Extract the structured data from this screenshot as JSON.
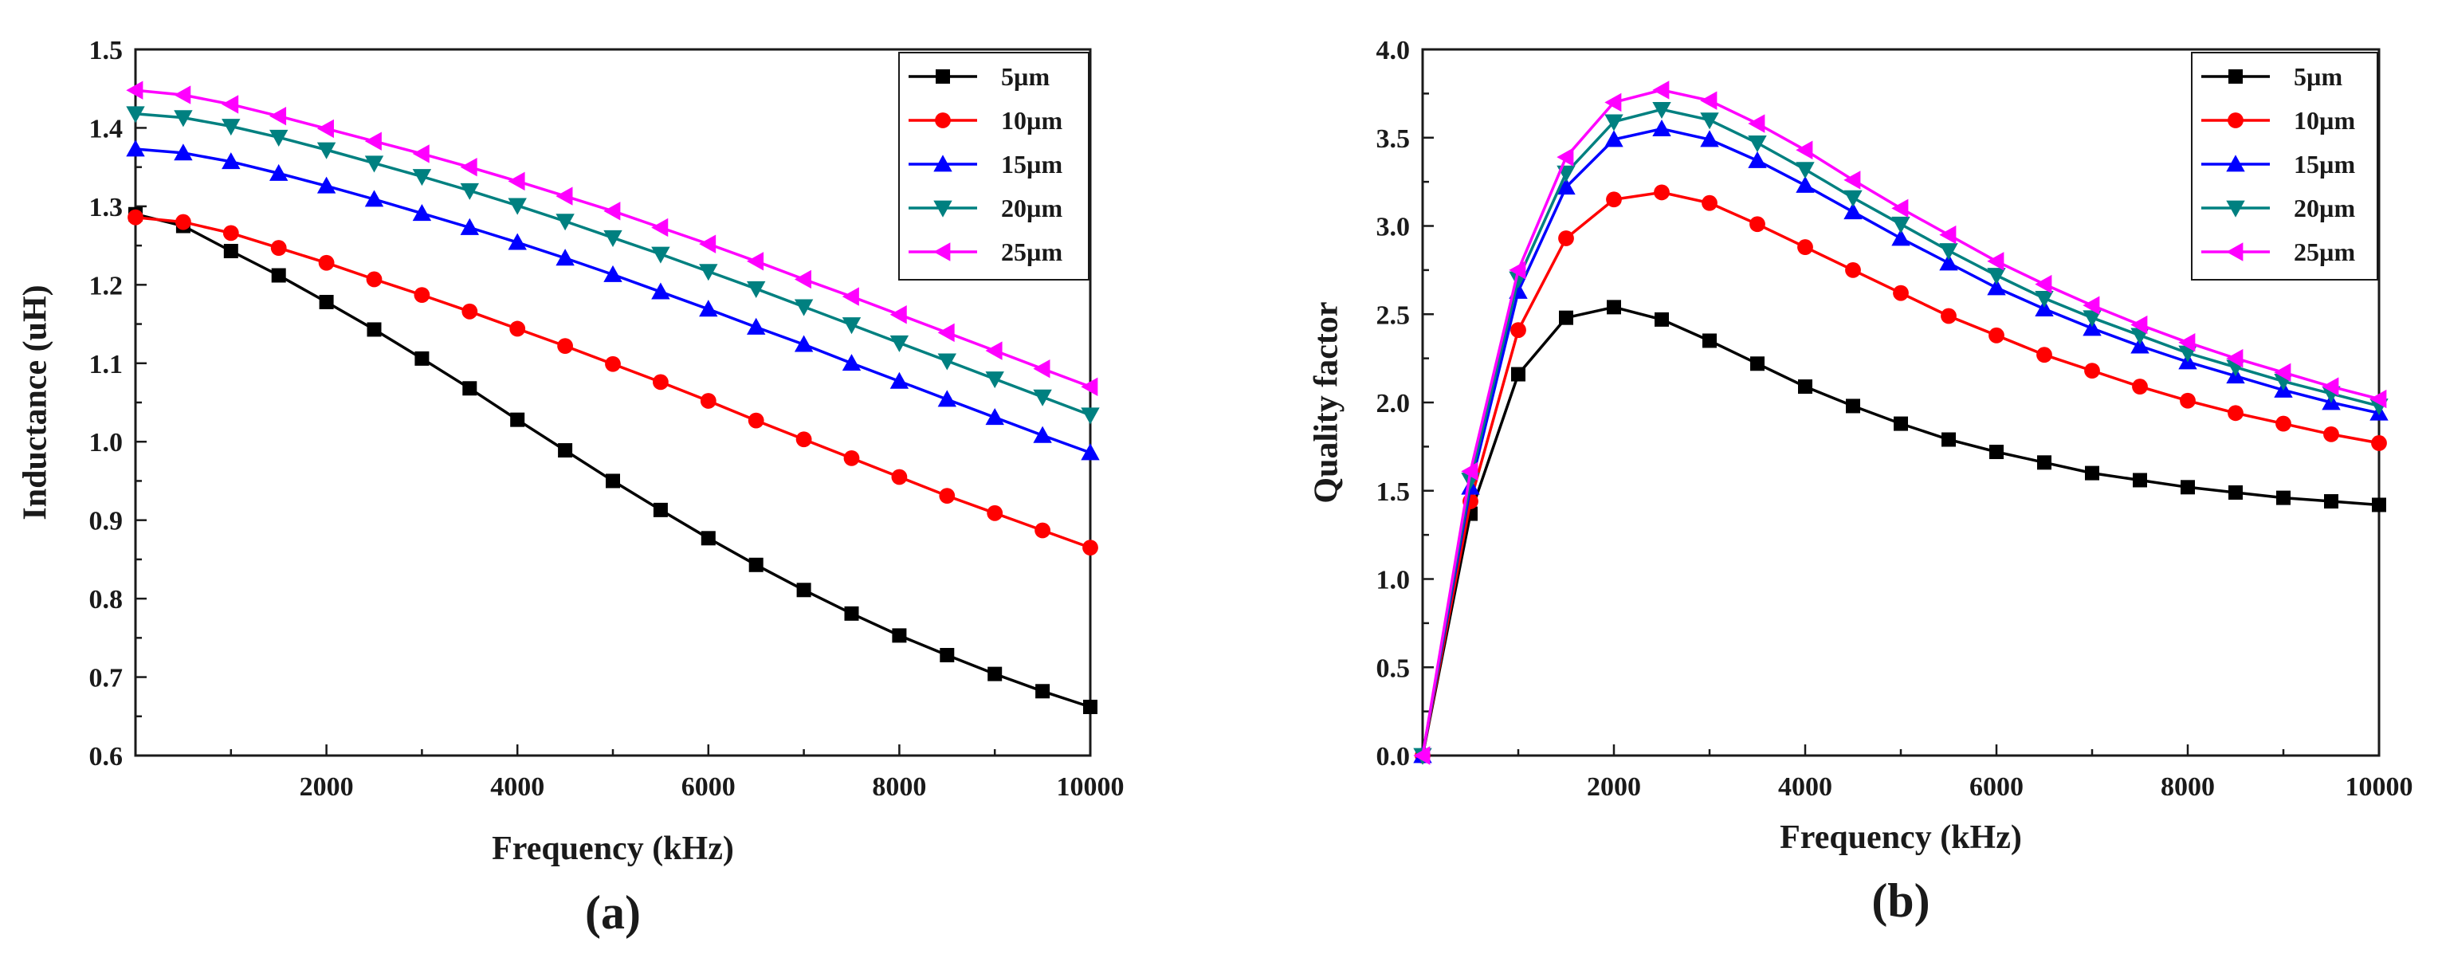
{
  "colors": {
    "5µm": "#000000",
    "10µm": "#ff0000",
    "15µm": "#0000ff",
    "20µm": "#008080",
    "25µm": "#ff00ff"
  },
  "chart_data": [
    {
      "type": "line",
      "panel_label": "(a)",
      "xlabel": "Frequency (kHz)",
      "ylabel": "Inductance (uH)",
      "xlim": [
        0,
        10000
      ],
      "ylim": [
        0.6,
        1.5
      ],
      "xticks": [
        2000,
        4000,
        6000,
        8000,
        10000
      ],
      "xtick_labels": [
        "2000",
        "4000",
        "6000",
        "8000",
        "10000"
      ],
      "yticks": [
        0.6,
        0.7,
        0.8,
        0.9,
        1.0,
        1.1,
        1.2,
        1.3,
        1.4,
        1.5
      ],
      "ytick_labels": [
        "0.6",
        "0.7",
        "0.8",
        "0.9",
        "1.0",
        "1.1",
        "1.2",
        "1.3",
        "1.4",
        "1.5"
      ],
      "legend_position": "top-right",
      "x": [
        0,
        500,
        1000,
        1500,
        2000,
        2500,
        3000,
        3500,
        4000,
        4500,
        5000,
        5500,
        6000,
        6500,
        7000,
        7500,
        8000,
        8500,
        9000,
        9500,
        10000
      ],
      "series": [
        {
          "name": "5µm",
          "marker": "square",
          "values": [
            1.29,
            1.275,
            1.243,
            1.212,
            1.178,
            1.143,
            1.106,
            1.068,
            1.028,
            0.989,
            0.95,
            0.913,
            0.877,
            0.843,
            0.811,
            0.781,
            0.753,
            0.728,
            0.704,
            0.682,
            0.662
          ]
        },
        {
          "name": "10µm",
          "marker": "circle",
          "values": [
            1.286,
            1.28,
            1.266,
            1.247,
            1.228,
            1.207,
            1.187,
            1.166,
            1.144,
            1.122,
            1.099,
            1.076,
            1.052,
            1.027,
            1.003,
            0.979,
            0.955,
            0.931,
            0.909,
            0.887,
            0.865
          ]
        },
        {
          "name": "15µm",
          "marker": "triangle-up",
          "values": [
            1.373,
            1.368,
            1.357,
            1.342,
            1.326,
            1.309,
            1.291,
            1.273,
            1.254,
            1.234,
            1.213,
            1.191,
            1.169,
            1.146,
            1.124,
            1.1,
            1.077,
            1.054,
            1.031,
            1.008,
            0.986
          ]
        },
        {
          "name": "20µm",
          "marker": "triangle-down",
          "values": [
            1.418,
            1.413,
            1.402,
            1.388,
            1.372,
            1.355,
            1.338,
            1.32,
            1.301,
            1.281,
            1.26,
            1.239,
            1.217,
            1.195,
            1.172,
            1.149,
            1.126,
            1.103,
            1.08,
            1.057,
            1.034
          ]
        },
        {
          "name": "25µm",
          "marker": "triangle-left",
          "values": [
            1.448,
            1.442,
            1.43,
            1.415,
            1.399,
            1.383,
            1.367,
            1.35,
            1.332,
            1.313,
            1.294,
            1.273,
            1.252,
            1.23,
            1.207,
            1.185,
            1.162,
            1.139,
            1.116,
            1.093,
            1.07
          ]
        }
      ]
    },
    {
      "type": "line",
      "panel_label": "(b)",
      "xlabel": "Frequency (kHz)",
      "ylabel": "Quality factor",
      "xlim": [
        0,
        10000
      ],
      "ylim": [
        0.0,
        4.0
      ],
      "xticks": [
        2000,
        4000,
        6000,
        8000,
        10000
      ],
      "xtick_labels": [
        "2000",
        "4000",
        "6000",
        "8000",
        "10000"
      ],
      "yticks": [
        0.0,
        0.5,
        1.0,
        1.5,
        2.0,
        2.5,
        3.0,
        3.5,
        4.0
      ],
      "ytick_labels": [
        "0.0",
        "0.5",
        "1.0",
        "1.5",
        "2.0",
        "2.5",
        "3.0",
        "3.5",
        "4.0"
      ],
      "legend_position": "top-right",
      "x": [
        0,
        500,
        1000,
        1500,
        2000,
        2500,
        3000,
        3500,
        4000,
        4500,
        5000,
        5500,
        6000,
        6500,
        7000,
        7500,
        8000,
        8500,
        9000,
        9500,
        10000
      ],
      "series": [
        {
          "name": "5µm",
          "marker": "square",
          "values": [
            0.0,
            1.37,
            2.16,
            2.48,
            2.54,
            2.47,
            2.35,
            2.22,
            2.09,
            1.98,
            1.88,
            1.79,
            1.72,
            1.66,
            1.6,
            1.56,
            1.52,
            1.49,
            1.46,
            1.44,
            1.42
          ]
        },
        {
          "name": "10µm",
          "marker": "circle",
          "values": [
            0.0,
            1.44,
            2.41,
            2.93,
            3.15,
            3.19,
            3.13,
            3.01,
            2.88,
            2.75,
            2.62,
            2.49,
            2.38,
            2.27,
            2.18,
            2.09,
            2.01,
            1.94,
            1.88,
            1.82,
            1.77
          ]
        },
        {
          "name": "15µm",
          "marker": "triangle-up",
          "values": [
            0.0,
            1.52,
            2.63,
            3.22,
            3.49,
            3.55,
            3.49,
            3.37,
            3.23,
            3.08,
            2.93,
            2.79,
            2.65,
            2.53,
            2.42,
            2.32,
            2.23,
            2.15,
            2.07,
            2.0,
            1.94
          ]
        },
        {
          "name": "20µm",
          "marker": "triangle-down",
          "values": [
            0.0,
            1.56,
            2.7,
            3.3,
            3.59,
            3.66,
            3.6,
            3.47,
            3.32,
            3.16,
            3.01,
            2.86,
            2.72,
            2.59,
            2.48,
            2.38,
            2.28,
            2.2,
            2.12,
            2.05,
            1.98
          ]
        },
        {
          "name": "25µm",
          "marker": "triangle-left",
          "values": [
            0.0,
            1.61,
            2.75,
            3.39,
            3.7,
            3.77,
            3.71,
            3.58,
            3.43,
            3.26,
            3.1,
            2.95,
            2.8,
            2.67,
            2.55,
            2.44,
            2.34,
            2.25,
            2.17,
            2.09,
            2.02
          ]
        }
      ]
    }
  ]
}
